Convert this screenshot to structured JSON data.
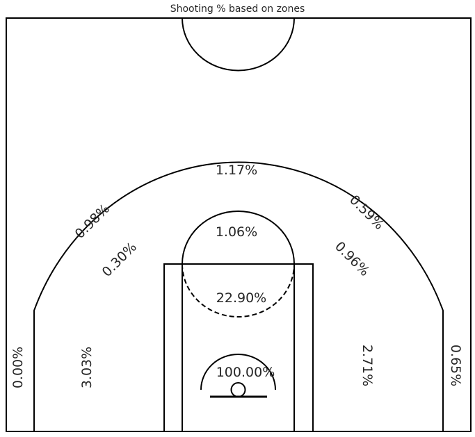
{
  "title": "Shooting % based on zones",
  "zones": [
    {
      "id": "restricted-area",
      "label": "100.00%"
    },
    {
      "id": "paint",
      "label": "22.90%"
    },
    {
      "id": "top-of-key",
      "label": "1.06%"
    },
    {
      "id": "mid-left-wing",
      "label": "0.30%"
    },
    {
      "id": "mid-right-wing",
      "label": "0.96%"
    },
    {
      "id": "mid-left-baseline",
      "label": "3.03%"
    },
    {
      "id": "mid-right-baseline",
      "label": "2.71%"
    },
    {
      "id": "three-top",
      "label": "1.17%"
    },
    {
      "id": "three-left-wing",
      "label": "0.98%"
    },
    {
      "id": "three-right-wing",
      "label": "0.59%"
    },
    {
      "id": "left-corner-three",
      "label": "0.00%"
    },
    {
      "id": "right-corner-three",
      "label": "0.65%"
    }
  ]
}
